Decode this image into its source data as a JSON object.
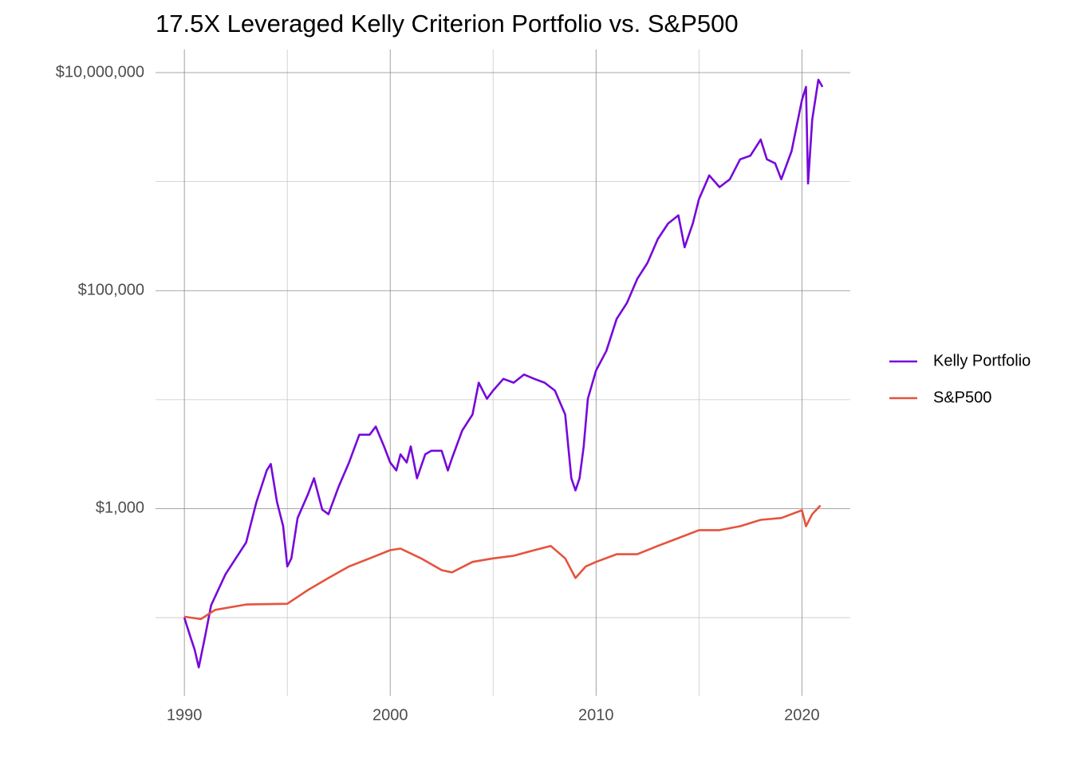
{
  "chart_data": {
    "type": "line",
    "title": "17.5X Leveraged Kelly Criterion Portfolio vs. S&P500",
    "y_scale": "log",
    "grid": true,
    "legend_position": "right",
    "xlim": [
      1988.6,
      2022.35
    ],
    "xticks": [
      1990,
      2000,
      2010,
      2020
    ],
    "x_minor_grid": [
      1995,
      2005,
      2015
    ],
    "ylim": [
      19.2,
      16300000
    ],
    "yticks": [
      {
        "value": 1000,
        "label": "$1,000"
      },
      {
        "value": 100000,
        "label": "$100,000"
      },
      {
        "value": 10000000,
        "label": "$10,000,000"
      }
    ],
    "y_minor_grid": [
      100,
      10000,
      1000000
    ],
    "series": [
      {
        "name": "Kelly Portfolio",
        "color": "#7608DA",
        "x": [
          1990.0,
          1990.3,
          1990.5,
          1990.7,
          1991.0,
          1991.3,
          1992.0,
          1992.5,
          1993.0,
          1993.5,
          1994.0,
          1994.2,
          1994.5,
          1994.8,
          1995.0,
          1995.2,
          1995.5,
          1996.0,
          1996.3,
          1996.7,
          1997.0,
          1997.5,
          1998.0,
          1998.5,
          1999.0,
          1999.3,
          1999.7,
          2000.0,
          2000.3,
          2000.5,
          2000.8,
          2001.0,
          2001.3,
          2001.7,
          2002.0,
          2002.5,
          2002.8,
          2003.0,
          2003.5,
          2004.0,
          2004.3,
          2004.7,
          2005.0,
          2005.5,
          2006.0,
          2006.5,
          2007.0,
          2007.5,
          2008.0,
          2008.5,
          2008.8,
          2009.0,
          2009.2,
          2009.4,
          2009.6,
          2010.0,
          2010.5,
          2011.0,
          2011.5,
          2012.0,
          2012.5,
          2013.0,
          2013.5,
          2014.0,
          2014.3,
          2014.7,
          2015.0,
          2015.5,
          2016.0,
          2016.5,
          2017.0,
          2017.5,
          2018.0,
          2018.3,
          2018.7,
          2019.0,
          2019.5,
          2020.0,
          2020.2,
          2020.3,
          2020.5,
          2020.8,
          2021.0
        ],
        "values": [
          100,
          66,
          51,
          35,
          66,
          130,
          250,
          350,
          490,
          1150,
          2240,
          2570,
          1150,
          690,
          295,
          350,
          820,
          1350,
          1900,
          980,
          890,
          1600,
          2650,
          4770,
          4770,
          5660,
          3720,
          2650,
          2240,
          3150,
          2650,
          3720,
          1900,
          3150,
          3400,
          3400,
          2240,
          2890,
          5200,
          7300,
          14300,
          10200,
          12100,
          15500,
          14300,
          17000,
          15500,
          14300,
          12100,
          7300,
          1900,
          1470,
          1900,
          3720,
          10200,
          18500,
          28000,
          55000,
          77000,
          128000,
          180000,
          297000,
          413000,
          490000,
          250000,
          413000,
          690000,
          1140000,
          890000,
          1050000,
          1600000,
          1730000,
          2430000,
          1600000,
          1470000,
          1050000,
          1900000,
          5600000,
          7400000,
          960000,
          3700000,
          8600000,
          7400000
        ]
      },
      {
        "name": "S&P500",
        "color": "#E5533D",
        "x": [
          1990.0,
          1990.8,
          1991.5,
          1993.0,
          1995.0,
          1996.0,
          1997.0,
          1998.0,
          1999.0,
          2000.0,
          2000.5,
          2001.5,
          2002.5,
          2003.0,
          2004.0,
          2005.0,
          2006.0,
          2007.0,
          2007.8,
          2008.5,
          2009.0,
          2009.5,
          2010.0,
          2011.0,
          2012.0,
          2013.0,
          2014.0,
          2015.0,
          2016.0,
          2017.0,
          2018.0,
          2019.0,
          2020.0,
          2020.2,
          2020.5,
          2020.9
        ],
        "values": [
          102,
          97,
          118,
          132,
          134,
          179,
          231,
          295,
          350,
          416,
          430,
          350,
          273,
          260,
          325,
          350,
          370,
          416,
          455,
          350,
          231,
          295,
          325,
          382,
          382,
          455,
          537,
          635,
          635,
          690,
          790,
          820,
          967,
          690,
          890,
          1070
        ]
      }
    ]
  }
}
